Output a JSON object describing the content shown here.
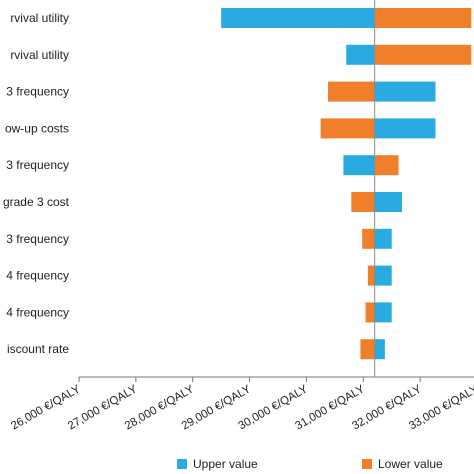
{
  "chart_data": {
    "type": "bar",
    "subtype": "tornado",
    "orientation": "horizontal",
    "base_value": 31200,
    "categories": [
      "rvival utility",
      "rvival utility",
      "3 frequency",
      "ow-up costs",
      "3 frequency",
      "grade 3 cost",
      "3 frequency",
      "4 frequency",
      "4 frequency",
      "iscount rate"
    ],
    "series": [
      {
        "name": "Upper value",
        "color": "#29abe2",
        "values": [
          28500,
          30700,
          32270,
          32270,
          30650,
          31680,
          31500,
          31500,
          31500,
          31380
        ]
      },
      {
        "name": "Lower value",
        "color": "#f07f2c",
        "values": [
          32900,
          32900,
          30380,
          30250,
          31620,
          30790,
          30980,
          31080,
          31040,
          30950
        ]
      }
    ],
    "x_ticks": [
      "26,000 €/QALY",
      "27,000 €/QALY",
      "28,000 €/QALY",
      "29,000 €/QALY",
      "30,000 €/QALY",
      "31,000 €/QALY",
      "32,000 €/QALY",
      "33,000 €/QALY"
    ],
    "xlim": [
      26000,
      33000
    ],
    "legend": {
      "position": "bottom",
      "items": [
        {
          "label": "Upper value",
          "color": "#29abe2"
        },
        {
          "label": "Lower value",
          "color": "#f07f2c"
        }
      ]
    },
    "grid": false
  }
}
